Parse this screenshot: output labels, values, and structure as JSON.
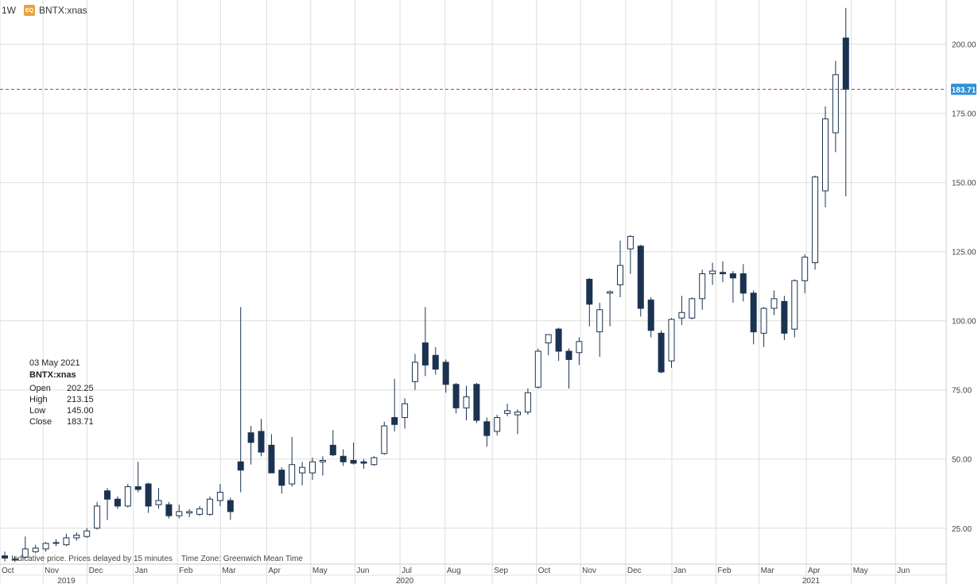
{
  "header": {
    "interval": "1W",
    "badge": "EQ",
    "symbol": "BNTX:xnas"
  },
  "tooltip": {
    "date": "03 May 2021",
    "symbol": "BNTX:xnas",
    "rows": [
      {
        "label": "Open",
        "value": "202.25"
      },
      {
        "label": "High",
        "value": "213.15"
      },
      {
        "label": "Low",
        "value": "145.00"
      },
      {
        "label": "Close",
        "value": "183.71"
      }
    ]
  },
  "footnote": "Indicative price. Prices delayed by 15 minutes    Time Zone: Greenwich Mean Time",
  "colors": {
    "down": "#1b3350",
    "up_fill": "#ffffff",
    "up_stroke": "#1b3350",
    "grid": "#dddddd",
    "current_line": "#c0392b",
    "current_label_bg": "#2e8ed6"
  },
  "chart_data": {
    "type": "candlestick",
    "interval": "weekly",
    "ylim": [
      12,
      216
    ],
    "y_ticks": [
      25,
      50,
      75,
      100,
      125,
      150,
      175,
      200
    ],
    "y_tick_labels": [
      "25.00",
      "50.00",
      "75.00",
      "100.00",
      "125.00",
      "150.00",
      "175.00",
      "200.00"
    ],
    "current_price": 183.71,
    "current_price_label": "183.71",
    "x_labels": [
      "Oct",
      "Nov",
      "Dec",
      "Jan",
      "Feb",
      "Mar",
      "Apr",
      "May",
      "Jun",
      "Jul",
      "Aug",
      "Sep",
      "Oct",
      "Nov",
      "Dec",
      "Jan",
      "Feb",
      "Mar",
      "Apr",
      "May",
      "Jun"
    ],
    "x_label_index": [
      0,
      4.2,
      8.5,
      13,
      17.3,
      21.5,
      26,
      30.3,
      34.6,
      39,
      43.4,
      48,
      52.3,
      56.6,
      61,
      65.5,
      69.8,
      74,
      78.6,
      83,
      87.3
    ],
    "year_labels": [
      "2019",
      "2020",
      "2021"
    ],
    "year_label_index": [
      6,
      39,
      78.6
    ],
    "candles": [
      {
        "o": 15.0,
        "h": 16.5,
        "l": 13.0,
        "c": 14.2
      },
      {
        "o": 13.8,
        "h": 14.8,
        "l": 12.8,
        "c": 13.5
      },
      {
        "o": 14.5,
        "h": 22.0,
        "l": 14.0,
        "c": 17.5
      },
      {
        "o": 16.5,
        "h": 19.0,
        "l": 16.0,
        "c": 17.8
      },
      {
        "o": 17.5,
        "h": 20.0,
        "l": 16.5,
        "c": 19.5
      },
      {
        "o": 19.5,
        "h": 21.0,
        "l": 18.5,
        "c": 19.8
      },
      {
        "o": 19.0,
        "h": 23.0,
        "l": 18.5,
        "c": 21.5
      },
      {
        "o": 21.5,
        "h": 23.5,
        "l": 20.5,
        "c": 22.5
      },
      {
        "o": 22.0,
        "h": 25.0,
        "l": 21.5,
        "c": 24.0
      },
      {
        "o": 25.0,
        "h": 34.5,
        "l": 24.5,
        "c": 33.0
      },
      {
        "o": 38.5,
        "h": 39.5,
        "l": 28.0,
        "c": 35.5
      },
      {
        "o": 35.5,
        "h": 36.5,
        "l": 32.0,
        "c": 33.0
      },
      {
        "o": 33.0,
        "h": 41.0,
        "l": 32.5,
        "c": 40.0
      },
      {
        "o": 40.0,
        "h": 49.0,
        "l": 38.0,
        "c": 39.0
      },
      {
        "o": 41.0,
        "h": 41.5,
        "l": 30.5,
        "c": 33.0
      },
      {
        "o": 33.5,
        "h": 39.5,
        "l": 32.0,
        "c": 35.0
      },
      {
        "o": 33.5,
        "h": 34.5,
        "l": 28.5,
        "c": 29.5
      },
      {
        "o": 29.5,
        "h": 33.5,
        "l": 28.5,
        "c": 31.0
      },
      {
        "o": 30.5,
        "h": 32.0,
        "l": 29.0,
        "c": 31.0
      },
      {
        "o": 30.0,
        "h": 33.0,
        "l": 29.5,
        "c": 32.0
      },
      {
        "o": 30.0,
        "h": 36.5,
        "l": 29.5,
        "c": 35.5
      },
      {
        "o": 35.0,
        "h": 41.0,
        "l": 33.0,
        "c": 38.0
      },
      {
        "o": 35.0,
        "h": 36.0,
        "l": 28.0,
        "c": 31.0
      },
      {
        "o": 49.0,
        "h": 105.0,
        "l": 38.0,
        "c": 46.0
      },
      {
        "o": 59.5,
        "h": 62.0,
        "l": 48.0,
        "c": 56.0
      },
      {
        "o": 60.0,
        "h": 64.5,
        "l": 51.0,
        "c": 52.5
      },
      {
        "o": 55.0,
        "h": 59.0,
        "l": 45.0,
        "c": 45.0
      },
      {
        "o": 46.0,
        "h": 47.0,
        "l": 37.5,
        "c": 40.5
      },
      {
        "o": 41.0,
        "h": 58.0,
        "l": 40.0,
        "c": 48.0
      },
      {
        "o": 45.0,
        "h": 49.0,
        "l": 40.5,
        "c": 47.0
      },
      {
        "o": 45.0,
        "h": 50.5,
        "l": 42.5,
        "c": 49.0
      },
      {
        "o": 49.0,
        "h": 51.0,
        "l": 44.0,
        "c": 49.5
      },
      {
        "o": 55.0,
        "h": 60.5,
        "l": 51.0,
        "c": 51.5
      },
      {
        "o": 51.0,
        "h": 53.5,
        "l": 47.5,
        "c": 49.0
      },
      {
        "o": 49.5,
        "h": 56.0,
        "l": 48.0,
        "c": 48.5
      },
      {
        "o": 49.0,
        "h": 50.0,
        "l": 46.5,
        "c": 48.5
      },
      {
        "o": 48.0,
        "h": 51.0,
        "l": 47.5,
        "c": 50.5
      },
      {
        "o": 52.0,
        "h": 63.5,
        "l": 51.5,
        "c": 62.0
      },
      {
        "o": 65.0,
        "h": 79.0,
        "l": 60.0,
        "c": 62.5
      },
      {
        "o": 65.0,
        "h": 72.0,
        "l": 61.0,
        "c": 70.0
      },
      {
        "o": 78.0,
        "h": 88.0,
        "l": 75.0,
        "c": 85.0
      },
      {
        "o": 92.0,
        "h": 105.0,
        "l": 80.0,
        "c": 84.0
      },
      {
        "o": 87.5,
        "h": 90.5,
        "l": 80.5,
        "c": 82.5
      },
      {
        "o": 85.0,
        "h": 86.0,
        "l": 74.0,
        "c": 77.0
      },
      {
        "o": 77.0,
        "h": 77.5,
        "l": 66.5,
        "c": 68.5
      },
      {
        "o": 68.5,
        "h": 76.5,
        "l": 64.0,
        "c": 72.5
      },
      {
        "o": 77.0,
        "h": 77.5,
        "l": 63.0,
        "c": 64.0
      },
      {
        "o": 63.5,
        "h": 65.0,
        "l": 54.5,
        "c": 58.5
      },
      {
        "o": 60.0,
        "h": 66.0,
        "l": 58.5,
        "c": 65.0
      },
      {
        "o": 66.5,
        "h": 70.0,
        "l": 65.5,
        "c": 67.5
      },
      {
        "o": 66.0,
        "h": 68.0,
        "l": 59.0,
        "c": 67.0
      },
      {
        "o": 67.0,
        "h": 75.5,
        "l": 66.0,
        "c": 74.0
      },
      {
        "o": 76.0,
        "h": 90.0,
        "l": 75.5,
        "c": 89.0
      },
      {
        "o": 92.0,
        "h": 95.0,
        "l": 87.5,
        "c": 95.0
      },
      {
        "o": 97.0,
        "h": 97.5,
        "l": 85.5,
        "c": 89.0
      },
      {
        "o": 89.0,
        "h": 90.0,
        "l": 75.5,
        "c": 86.0
      },
      {
        "o": 88.5,
        "h": 94.0,
        "l": 84.0,
        "c": 92.5
      },
      {
        "o": 115.0,
        "h": 115.5,
        "l": 98.0,
        "c": 106.0
      },
      {
        "o": 96.0,
        "h": 106.5,
        "l": 87.0,
        "c": 104.0
      },
      {
        "o": 110.0,
        "h": 111.0,
        "l": 98.0,
        "c": 110.5
      },
      {
        "o": 113.0,
        "h": 129.0,
        "l": 108.5,
        "c": 120.0
      },
      {
        "o": 126.0,
        "h": 131.0,
        "l": 117.0,
        "c": 130.5
      },
      {
        "o": 127.0,
        "h": 127.5,
        "l": 101.5,
        "c": 104.5
      },
      {
        "o": 107.5,
        "h": 108.5,
        "l": 94.0,
        "c": 96.5
      },
      {
        "o": 95.5,
        "h": 96.5,
        "l": 81.0,
        "c": 81.5
      },
      {
        "o": 85.5,
        "h": 101.0,
        "l": 83.0,
        "c": 100.5
      },
      {
        "o": 101.0,
        "h": 109.0,
        "l": 98.5,
        "c": 103.0
      },
      {
        "o": 101.0,
        "h": 108.5,
        "l": 100.5,
        "c": 108.0
      },
      {
        "o": 108.0,
        "h": 118.5,
        "l": 104.0,
        "c": 117.0
      },
      {
        "o": 117.0,
        "h": 121.0,
        "l": 113.0,
        "c": 118.0
      },
      {
        "o": 117.5,
        "h": 121.5,
        "l": 114.0,
        "c": 117.0
      },
      {
        "o": 117.0,
        "h": 118.0,
        "l": 106.5,
        "c": 115.5
      },
      {
        "o": 117.0,
        "h": 120.5,
        "l": 107.0,
        "c": 110.0
      },
      {
        "o": 110.0,
        "h": 111.0,
        "l": 91.5,
        "c": 96.0
      },
      {
        "o": 95.5,
        "h": 105.0,
        "l": 90.5,
        "c": 104.5
      },
      {
        "o": 104.5,
        "h": 111.0,
        "l": 102.0,
        "c": 108.0
      },
      {
        "o": 107.0,
        "h": 109.0,
        "l": 93.0,
        "c": 95.5
      },
      {
        "o": 97.0,
        "h": 115.0,
        "l": 94.0,
        "c": 114.5
      },
      {
        "o": 114.5,
        "h": 124.0,
        "l": 110.0,
        "c": 123.0
      },
      {
        "o": 121.0,
        "h": 152.5,
        "l": 118.5,
        "c": 152.0
      },
      {
        "o": 147.0,
        "h": 177.5,
        "l": 141.0,
        "c": 173.0
      },
      {
        "o": 168.0,
        "h": 194.0,
        "l": 161.0,
        "c": 189.0
      },
      {
        "o": 202.25,
        "h": 213.15,
        "l": 145.0,
        "c": 183.71
      }
    ]
  }
}
